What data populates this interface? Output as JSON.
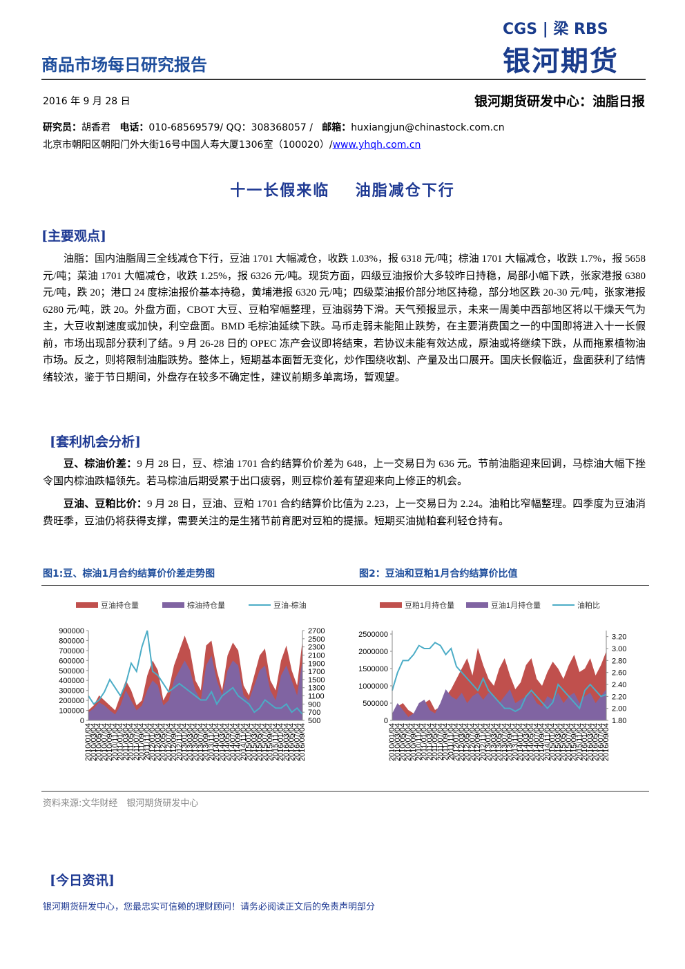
{
  "header": {
    "series": "商品市场每日研究报告",
    "logo_top": "CGS | 梁 RBS",
    "logo_brand": "银河期货"
  },
  "meta": {
    "date": "2016 年 9 月 28 日",
    "department": "银河期货研发中心：油脂日报",
    "researcher_label": "研究员：",
    "researcher": "胡香君",
    "phone_label": "电话：",
    "phone": "010-68569579/ QQ：308368057 /",
    "email_label": "邮箱：",
    "email": "huxiangjun@chinastock.com.cn",
    "address": "北京市朝阳区朝阳门外大街16号中国人寿大厦1306室（100020）/",
    "website": "www.yhqh.com.cn"
  },
  "headline": [
    "十一长假来临",
    "油脂减仓下行"
  ],
  "sections": [
    {
      "heading": "[主要观点]",
      "paragraph": "油脂：国内油脂周三全线减仓下行，豆油 1701 大幅减仓，收跌 1.03%，报 6318 元/吨；棕油 1701 大幅减仓，收跌 1.7%，报 5658 元/吨；菜油 1701 大幅减仓，收跌 1.25%，报 6326 元/吨。现货方面，四级豆油报价大多较昨日持稳，局部小幅下跌，张家港报 6380 元/吨，跌 20；港口 24 度棕油报价基本持稳，黄埔港报 6320 元/吨；四级菜油报价部分地区持稳，部分地区跌 20-30 元/吨，张家港报 6280 元/吨，跌 20。外盘方面，CBOT 大豆、豆粕窄幅整理，豆油弱势下滑。天气预报显示，未来一周美中西部地区将以干燥天气为主，大豆收割速度或加快，利空盘面。BMD 毛棕油延续下跌。马币走弱未能阻止跌势，在主要消费国之一的中国即将进入十一长假前，市场出现部分获利了结。9 月 26-28 日的 OPEC 冻产会议即将结束，若协议未能有效达成，原油或将继续下跌，从而拖累植物油市场。反之，则将限制油脂跌势。整体上，短期基本面暂无变化，炒作围绕收割、产量及出口展开。国庆长假临近，盘面获利了结情绪较浓，鉴于节日期间，外盘存在较多不确定性，建议前期多单离场，暂观望。"
    },
    {
      "heading": "[套利机会分析]",
      "paragraphs": [
        {
          "lead": "豆、棕油价差：",
          "text": "9 月 28 日，豆、棕油 1701 合约结算价价差为 648，上一交易日为 636 元。节前油脂迎来回调，马棕油大幅下挫令国内棕油跌幅领先。若马棕油后期受累于出口疲弱，则豆棕价差有望迎来向上修正的机会。"
        },
        {
          "lead": "豆油、豆粕比价：",
          "text": "9 月 28 日，豆油、豆粕 1701 合约结算价比值为 2.23，上一交易日为 2.24。油粕比窄幅整理。四季度为豆油消费旺季，豆油仍将获得支撑，需要关注的是生猪节前育肥对豆粕的提振。短期买油抛粕套利轻仓持有。"
        }
      ]
    },
    {
      "heading": "[今日资讯]"
    }
  ],
  "source": "资料来源:文华财经　银河期货研发中心",
  "footer": "银河期货研发中心，您最忠实可信赖的理财顾问！请务必阅读正文后的免责声明部分",
  "chart_data": [
    {
      "type": "area-line",
      "title": "图1:豆、棕油1月合约结算价价差走势图",
      "categories": [
        "2010/01/04",
        "2010/03/04",
        "2010/05/04",
        "2010/07/04",
        "2010/09/04",
        "2010/11/04",
        "2011/01/04",
        "2011/03/04",
        "2011/05/04",
        "2011/07/04",
        "2011/09/04",
        "2011/11/04",
        "2012/01/04",
        "2012/03/04",
        "2012/05/04",
        "2012/07/04",
        "2012/09/04",
        "2012/11/04",
        "2013/01/04",
        "2013/03/04",
        "2013/05/04",
        "2013/07/04",
        "2013/09/04",
        "2013/11/04",
        "2014/01/04",
        "2014/03/04",
        "2014/05/04",
        "2014/07/04",
        "2014/09/04",
        "2014/11/04",
        "2015/01/04",
        "2015/03/04",
        "2015/05/04",
        "2015/07/04",
        "2015/09/04",
        "2015/11/04",
        "2016/01/04",
        "2016/03/04",
        "2016/05/04",
        "2016/07/04",
        "2016/09/04"
      ],
      "series": [
        {
          "name": "豆油持仓量",
          "color": "#c0504d",
          "kind": "area",
          "values": [
            100000,
            150000,
            250000,
            200000,
            150000,
            100000,
            250000,
            400000,
            300000,
            150000,
            200000,
            450000,
            600000,
            500000,
            200000,
            300000,
            550000,
            700000,
            850000,
            700000,
            400000,
            300000,
            750000,
            800000,
            500000,
            300000,
            650000,
            780000,
            700000,
            350000,
            250000,
            450000,
            650000,
            720000,
            400000,
            300000,
            600000,
            750000,
            500000,
            350000,
            800000
          ]
        },
        {
          "name": "棕油持仓量",
          "color": "#8064a2",
          "kind": "area",
          "values": [
            80000,
            120000,
            180000,
            150000,
            100000,
            60000,
            150000,
            300000,
            200000,
            100000,
            150000,
            300000,
            400000,
            350000,
            150000,
            200000,
            400000,
            500000,
            600000,
            500000,
            300000,
            200000,
            550000,
            650000,
            400000,
            250000,
            500000,
            600000,
            550000,
            250000,
            200000,
            350000,
            500000,
            550000,
            300000,
            200000,
            450000,
            550000,
            400000,
            250000,
            600000
          ]
        },
        {
          "name": "豆油-棕油",
          "color": "#4bacc6",
          "kind": "line",
          "axis": "y2",
          "values": [
            1100,
            900,
            1000,
            1200,
            1500,
            1300,
            1100,
            1400,
            1900,
            1700,
            2300,
            2700,
            1700,
            1600,
            1400,
            1200,
            1300,
            1400,
            1300,
            1200,
            1100,
            1000,
            1000,
            1200,
            900,
            1100,
            1200,
            1300,
            1100,
            1000,
            900,
            700,
            800,
            1000,
            900,
            800,
            800,
            900,
            700,
            800,
            650
          ]
        }
      ],
      "ylim": [
        0,
        900000
      ],
      "yticks": [
        0,
        100000,
        200000,
        300000,
        400000,
        500000,
        600000,
        700000,
        800000,
        900000
      ],
      "y2lim": [
        500,
        2700
      ],
      "y2ticks": [
        500,
        700,
        900,
        1100,
        1300,
        1500,
        1700,
        1900,
        2100,
        2300,
        2500,
        2700
      ]
    },
    {
      "type": "area-line",
      "title": "图2：豆油和豆粕1月合约结算价比值",
      "categories": [
        "2010/01/04",
        "2010/03/04",
        "2010/05/04",
        "2010/07/04",
        "2010/09/04",
        "2010/11/04",
        "2011/01/04",
        "2011/03/04",
        "2011/05/04",
        "2011/07/04",
        "2011/09/04",
        "2011/11/04",
        "2012/01/04",
        "2012/03/04",
        "2012/05/04",
        "2012/07/04",
        "2012/09/04",
        "2012/11/04",
        "2013/01/04",
        "2013/03/04",
        "2013/05/04",
        "2013/07/04",
        "2013/09/04",
        "2013/11/04",
        "2014/01/04",
        "2014/03/04",
        "2014/05/04",
        "2014/07/04",
        "2014/09/04",
        "2014/11/04",
        "2015/01/04",
        "2015/03/04",
        "2015/05/04",
        "2015/07/04",
        "2015/09/04",
        "2015/11/04",
        "2016/01/04",
        "2016/03/04",
        "2016/05/04",
        "2016/07/04",
        "2016/09/04"
      ],
      "series": [
        {
          "name": "豆粕1月持仓量",
          "color": "#c0504d",
          "kind": "area",
          "values": [
            200000,
            400000,
            500000,
            300000,
            200000,
            400000,
            500000,
            600000,
            300000,
            400000,
            700000,
            900000,
            1200000,
            1500000,
            1800000,
            1300000,
            2100000,
            1600000,
            1200000,
            1000000,
            1500000,
            1800000,
            1300000,
            900000,
            1100000,
            1600000,
            1800000,
            1200000,
            1000000,
            1400000,
            1700000,
            1500000,
            1200000,
            1600000,
            1900000,
            1400000,
            1500000,
            1800000,
            1300000,
            1600000,
            2000000
          ]
        },
        {
          "name": "豆油1月持仓量",
          "color": "#8064a2",
          "kind": "area",
          "values": [
            200000,
            500000,
            300000,
            100000,
            200000,
            500000,
            600000,
            300000,
            200000,
            500000,
            900000,
            700000,
            600000,
            800000,
            500000,
            700000,
            800000,
            600000,
            800000,
            700000,
            500000,
            700000,
            900000,
            500000,
            600000,
            700000,
            800000,
            500000,
            400000,
            700000,
            600000,
            800000,
            500000,
            700000,
            800000,
            500000,
            700000,
            800000,
            500000,
            700000,
            900000
          ]
        },
        {
          "name": "油粕比",
          "color": "#4bacc6",
          "kind": "line",
          "axis": "y2",
          "values": [
            2.3,
            2.6,
            2.8,
            2.8,
            2.9,
            3.05,
            3.0,
            3.0,
            3.1,
            3.05,
            2.9,
            3.0,
            2.7,
            2.6,
            2.5,
            2.4,
            2.3,
            2.5,
            2.3,
            2.2,
            2.1,
            2.0,
            2.0,
            1.95,
            2.0,
            2.2,
            2.3,
            2.2,
            2.1,
            2.0,
            2.1,
            2.4,
            2.3,
            2.2,
            2.1,
            2.0,
            2.3,
            2.4,
            2.3,
            2.2,
            2.23
          ]
        }
      ],
      "ylim": [
        0,
        2600000
      ],
      "yticks": [
        0,
        500000,
        1000000,
        1500000,
        2000000,
        2500000
      ],
      "y2lim": [
        1.8,
        3.3
      ],
      "y2ticks": [
        {
          "value": 1.8,
          "label": "1.80"
        },
        {
          "value": 2.0,
          "label": "2.00"
        },
        {
          "value": 2.2,
          "label": "2.20"
        },
        {
          "value": 2.4,
          "label": "2.40"
        },
        {
          "value": 2.6,
          "label": "2.60"
        },
        {
          "value": 2.8,
          "label": "2.80"
        },
        {
          "value": 3.0,
          "label": "3.00"
        },
        {
          "value": 3.2,
          "label": "3.20"
        }
      ]
    }
  ]
}
